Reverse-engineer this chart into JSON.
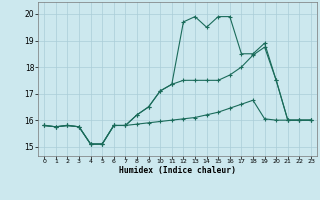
{
  "xlabel": "Humidex (Indice chaleur)",
  "xlim": [
    -0.5,
    23.5
  ],
  "ylim": [
    14.65,
    20.45
  ],
  "yticks": [
    15,
    16,
    17,
    18,
    19,
    20
  ],
  "xticks": [
    0,
    1,
    2,
    3,
    4,
    5,
    6,
    7,
    8,
    9,
    10,
    11,
    12,
    13,
    14,
    15,
    16,
    17,
    18,
    19,
    20,
    21,
    22,
    23
  ],
  "bg_color": "#cce8ee",
  "line_color": "#1a6b5a",
  "grid_color": "#aacdd8",
  "line1_x": [
    0,
    1,
    2,
    3,
    4,
    5,
    6,
    7,
    8,
    9,
    10,
    11,
    12,
    13,
    14,
    15,
    16,
    17,
    18,
    19,
    20,
    21,
    22,
    23
  ],
  "line1_y": [
    15.8,
    15.75,
    15.8,
    15.75,
    15.1,
    15.1,
    15.8,
    15.8,
    15.85,
    15.9,
    15.95,
    16.0,
    16.05,
    16.1,
    16.2,
    16.3,
    16.45,
    16.6,
    16.75,
    16.05,
    16.0,
    16.0,
    16.0,
    16.0
  ],
  "line2_x": [
    0,
    1,
    2,
    3,
    4,
    5,
    6,
    7,
    8,
    9,
    10,
    11,
    12,
    13,
    14,
    15,
    16,
    17,
    18,
    19,
    20,
    21,
    22,
    23
  ],
  "line2_y": [
    15.8,
    15.75,
    15.8,
    15.75,
    15.1,
    15.1,
    15.8,
    15.8,
    16.2,
    16.5,
    17.1,
    17.35,
    19.7,
    19.9,
    19.5,
    19.9,
    19.9,
    18.5,
    18.5,
    18.9,
    17.5,
    16.0,
    16.0,
    16.0
  ],
  "line3_x": [
    0,
    1,
    2,
    3,
    4,
    5,
    6,
    7,
    8,
    9,
    10,
    11,
    12,
    13,
    14,
    15,
    16,
    17,
    18,
    19,
    20,
    21,
    22,
    23
  ],
  "line3_y": [
    15.8,
    15.75,
    15.8,
    15.75,
    15.1,
    15.1,
    15.8,
    15.8,
    16.2,
    16.5,
    17.1,
    17.35,
    17.5,
    17.5,
    17.5,
    17.5,
    17.7,
    18.0,
    18.45,
    18.75,
    17.5,
    16.0,
    16.0,
    16.0
  ]
}
